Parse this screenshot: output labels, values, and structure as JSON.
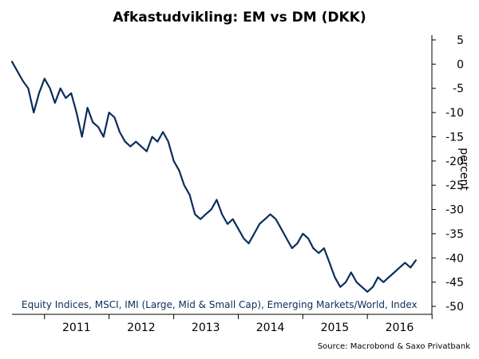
{
  "chart_data": {
    "type": "line",
    "title": "Afkastudvikling: EM vs DM (DKK)",
    "xlabel": "",
    "ylabel": "percent",
    "x_ticks": [
      "2011",
      "2012",
      "2013",
      "2014",
      "2015",
      "2016"
    ],
    "xlim": [
      "2010-07-01",
      "2016-12-31"
    ],
    "y_ticks": [
      5,
      0,
      -5,
      -10,
      -15,
      -20,
      -25,
      -30,
      -35,
      -40,
      -45,
      -50
    ],
    "ylim": [
      -50,
      5
    ],
    "y_axis_side": "right",
    "grid": false,
    "legend_placement": "bottom-left",
    "series": [
      {
        "name": "Equity Indices, MSCI, IMI (Large, Mid & Small Cap), Emerging Markets/World, Index",
        "color": "#0b2d5b",
        "x": [
          "2010-07-01",
          "2010-08-01",
          "2010-09-01",
          "2010-10-01",
          "2010-11-01",
          "2010-12-01",
          "2011-01-01",
          "2011-02-01",
          "2011-03-01",
          "2011-04-01",
          "2011-05-01",
          "2011-06-01",
          "2011-07-01",
          "2011-08-01",
          "2011-09-01",
          "2011-10-01",
          "2011-11-01",
          "2011-12-01",
          "2012-01-01",
          "2012-02-01",
          "2012-03-01",
          "2012-04-01",
          "2012-05-01",
          "2012-06-01",
          "2012-07-01",
          "2012-08-01",
          "2012-09-01",
          "2012-10-01",
          "2012-11-01",
          "2012-12-01",
          "2013-01-01",
          "2013-02-01",
          "2013-03-01",
          "2013-04-01",
          "2013-05-01",
          "2013-06-01",
          "2013-07-01",
          "2013-08-01",
          "2013-09-01",
          "2013-10-01",
          "2013-11-01",
          "2013-12-01",
          "2014-01-01",
          "2014-02-01",
          "2014-03-01",
          "2014-04-01",
          "2014-05-01",
          "2014-06-01",
          "2014-07-01",
          "2014-08-01",
          "2014-09-01",
          "2014-10-01",
          "2014-11-01",
          "2014-12-01",
          "2015-01-01",
          "2015-02-01",
          "2015-03-01",
          "2015-04-01",
          "2015-05-01",
          "2015-06-01",
          "2015-07-01",
          "2015-08-01",
          "2015-09-01",
          "2015-10-01",
          "2015-11-01",
          "2015-12-01",
          "2016-01-01",
          "2016-02-01",
          "2016-03-01",
          "2016-04-01",
          "2016-05-01",
          "2016-06-01",
          "2016-07-01",
          "2016-08-01",
          "2016-09-01",
          "2016-10-01"
        ],
        "values": [
          0.5,
          -1.5,
          -3.5,
          -5,
          -10,
          -6,
          -3,
          -5,
          -8,
          -5,
          -7,
          -6,
          -10,
          -15,
          -9,
          -12,
          -13,
          -15,
          -10,
          -11,
          -14,
          -16,
          -17,
          -16,
          -17,
          -18,
          -15,
          -16,
          -14,
          -16,
          -20,
          -22,
          -25,
          -27,
          -31,
          -32,
          -31,
          -30,
          -28,
          -31,
          -33,
          -32,
          -34,
          -36,
          -37,
          -35,
          -33,
          -32,
          -31,
          -32,
          -34,
          -36,
          -38,
          -37,
          -35,
          -36,
          -38,
          -39,
          -38,
          -41,
          -44,
          -46,
          -45,
          -43,
          -45,
          -46,
          -47,
          -46,
          -44,
          -45,
          -44,
          -43,
          -42,
          -41,
          -42,
          -40.5
        ]
      }
    ]
  },
  "source_text": "Source: Macrobond & Saxo Privatbank"
}
